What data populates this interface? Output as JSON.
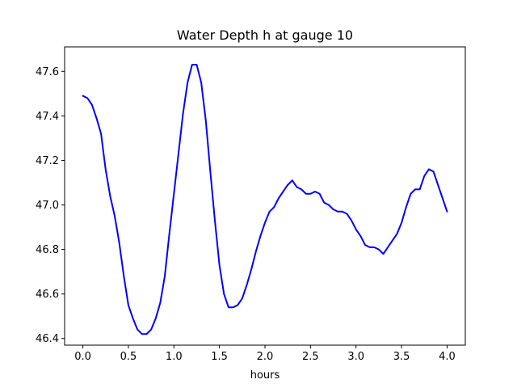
{
  "chart_data": {
    "type": "line",
    "title": "Water Depth h at gauge 10",
    "xlabel": "hours",
    "ylabel": "",
    "xlim": [
      -0.2,
      4.2
    ],
    "ylim": [
      46.37,
      47.71
    ],
    "xticks": [
      0.0,
      0.5,
      1.0,
      1.5,
      2.0,
      2.5,
      3.0,
      3.5,
      4.0
    ],
    "xtick_labels": [
      "0.0",
      "0.5",
      "1.0",
      "1.5",
      "2.0",
      "2.5",
      "3.0",
      "3.5",
      "4.0"
    ],
    "yticks": [
      46.4,
      46.6,
      46.8,
      47.0,
      47.2,
      47.4,
      47.6
    ],
    "ytick_labels": [
      "46.4",
      "46.6",
      "46.8",
      "47.0",
      "47.2",
      "47.4",
      "47.6"
    ],
    "grid": false,
    "legend": false,
    "series": [
      {
        "color": "#0000ff",
        "x": [
          0.0,
          0.05,
          0.1,
          0.15,
          0.2,
          0.25,
          0.3,
          0.35,
          0.4,
          0.45,
          0.5,
          0.55,
          0.6,
          0.65,
          0.7,
          0.75,
          0.8,
          0.85,
          0.9,
          0.95,
          1.0,
          1.05,
          1.1,
          1.15,
          1.2,
          1.25,
          1.3,
          1.35,
          1.4,
          1.45,
          1.5,
          1.55,
          1.6,
          1.65,
          1.7,
          1.75,
          1.8,
          1.85,
          1.9,
          1.95,
          2.0,
          2.05,
          2.1,
          2.15,
          2.2,
          2.25,
          2.3,
          2.35,
          2.4,
          2.45,
          2.5,
          2.55,
          2.6,
          2.65,
          2.7,
          2.75,
          2.8,
          2.85,
          2.9,
          2.95,
          3.0,
          3.05,
          3.1,
          3.15,
          3.2,
          3.25,
          3.3,
          3.35,
          3.4,
          3.45,
          3.5,
          3.55,
          3.6,
          3.65,
          3.7,
          3.75,
          3.8,
          3.85,
          3.9,
          3.95,
          4.0
        ],
        "y": [
          47.49,
          47.48,
          47.45,
          47.39,
          47.32,
          47.16,
          47.04,
          46.95,
          46.83,
          46.68,
          46.55,
          46.49,
          46.44,
          46.42,
          46.42,
          46.44,
          46.49,
          46.56,
          46.68,
          46.87,
          47.05,
          47.23,
          47.41,
          47.55,
          47.63,
          47.63,
          47.55,
          47.38,
          47.15,
          46.93,
          46.73,
          46.6,
          46.54,
          46.54,
          46.55,
          46.58,
          46.64,
          46.71,
          46.79,
          46.86,
          46.92,
          46.97,
          46.99,
          47.03,
          47.06,
          47.09,
          47.11,
          47.08,
          47.07,
          47.05,
          47.05,
          47.06,
          47.05,
          47.01,
          47.0,
          46.98,
          46.97,
          46.97,
          46.96,
          46.93,
          46.89,
          46.86,
          46.82,
          46.81,
          46.81,
          46.8,
          46.78,
          46.81,
          46.84,
          46.87,
          46.92,
          46.99,
          47.05,
          47.07,
          47.07,
          47.13,
          47.16,
          47.15,
          47.09,
          47.03,
          46.97
        ]
      }
    ]
  }
}
